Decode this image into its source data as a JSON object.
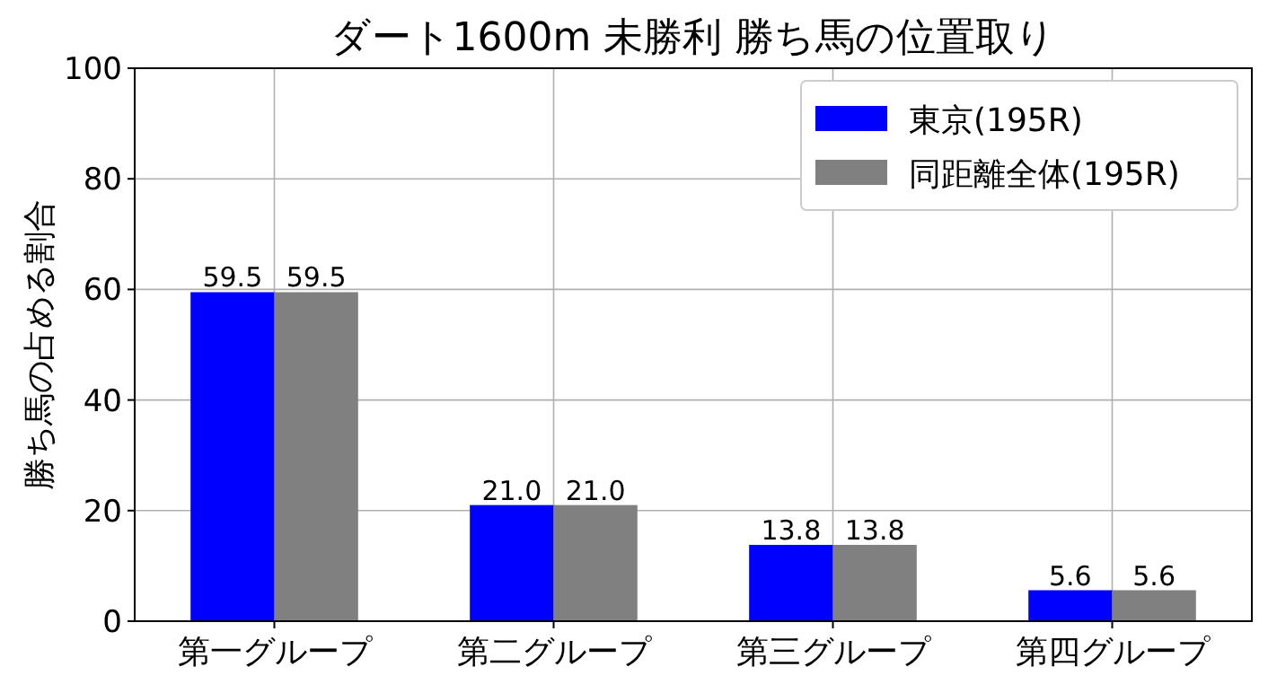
{
  "chart_data": {
    "type": "bar",
    "title": "ダート1600m 未勝利 勝ち馬の位置取り",
    "ylabel": "勝ち馬の占める割合",
    "categories": [
      "第一グループ",
      "第二グループ",
      "第三グループ",
      "第四グループ"
    ],
    "series": [
      {
        "name": "東京(195R)",
        "color": "#0000ff",
        "values": [
          59.5,
          21.0,
          13.8,
          5.6
        ],
        "value_labels": [
          "59.5",
          "21.0",
          "13.8",
          "5.6"
        ]
      },
      {
        "name": "同距離全体(195R)",
        "color": "#808080",
        "values": [
          59.5,
          21.0,
          13.8,
          5.6
        ],
        "value_labels": [
          "59.5",
          "21.0",
          "13.8",
          "5.6"
        ]
      }
    ],
    "ylim": [
      0,
      100
    ],
    "yticks": [
      0,
      20,
      40,
      60,
      80,
      100
    ],
    "grid": true,
    "legend": "top right"
  }
}
